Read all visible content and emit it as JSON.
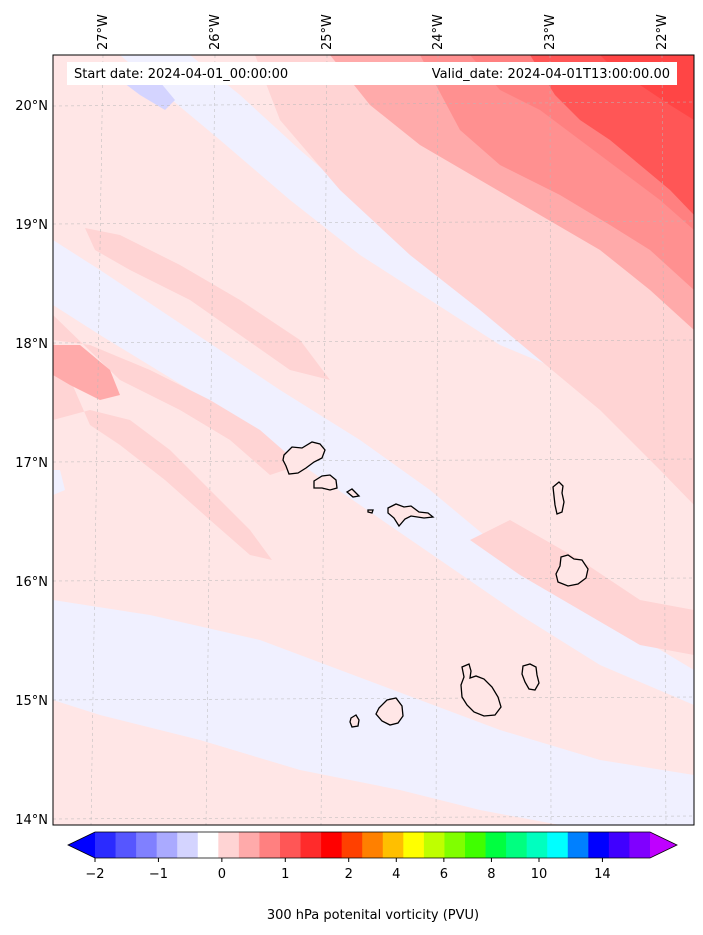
{
  "header": {
    "start_date": "Start date: 2024-04-01_00:00:00",
    "valid_date": "Valid_date: 2024-04-01T13:00:00.00"
  },
  "axes": {
    "lon_labels": [
      "27°W",
      "26°W",
      "25°W",
      "24°W",
      "23°W",
      "22°W"
    ],
    "lat_labels": [
      "20°N",
      "19°N",
      "18°N",
      "17°N",
      "16°N",
      "15°N",
      "14°N"
    ]
  },
  "colorbar": {
    "label": "300 hPa potenital vorticity (PVU)",
    "tick_labels": [
      "−2",
      "−1",
      "0",
      "1",
      "2",
      "4",
      "6",
      "8",
      "10",
      "14"
    ],
    "colors": [
      "#0000ff",
      "#2b2bff",
      "#5656ff",
      "#8080ff",
      "#aaaaff",
      "#d4d4ff",
      "#ffffff",
      "#ffd4d4",
      "#ffaaaa",
      "#ff8080",
      "#ff5656",
      "#ff2b2b",
      "#ff0000",
      "#ff4000",
      "#ff8000",
      "#ffbf00",
      "#ffff00",
      "#bfff00",
      "#80ff00",
      "#40ff00",
      "#00ff40",
      "#00ff80",
      "#00ffbf",
      "#00ffff",
      "#0080ff",
      "#0000ff",
      "#4000ff",
      "#8000ff",
      "#bf00ff"
    ]
  },
  "chart_data": {
    "type": "heatmap",
    "title": "",
    "xlabel": "",
    "ylabel": "",
    "colorbar_label": "300 hPa potenital vorticity (PVU)",
    "lon_range": [
      -27.3,
      -21.8
    ],
    "lat_range": [
      13.95,
      20.4
    ],
    "colorbar_ticks": [
      -2,
      -1,
      0,
      1,
      2,
      4,
      6,
      8,
      10,
      14
    ],
    "field_summary": "Negative PV (light blue) bands along the western side, increasing positive PV toward the northeast corner (up to about 2 PVU)",
    "grid": true
  }
}
